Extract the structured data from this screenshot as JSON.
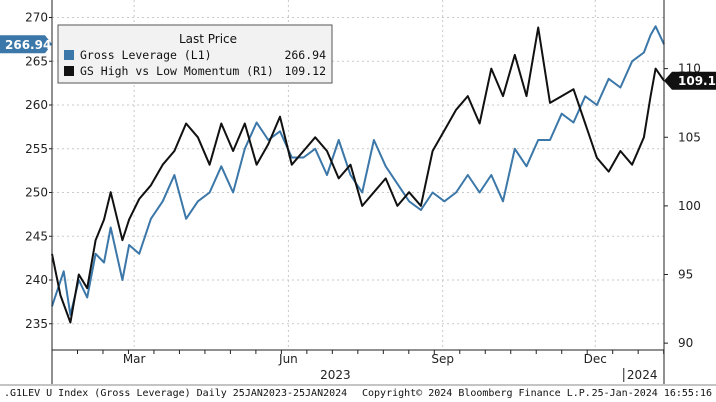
{
  "colors": {
    "series_l1": "#3b77a8",
    "series_r1": "#111111",
    "grid": "#c9c9c9",
    "axis": "#222222"
  },
  "chart_data": {
    "type": "line",
    "grid": true,
    "legend": {
      "title": "Last Price",
      "placement": "top-left",
      "items": [
        {
          "label": "Gross Leverage  (L1)",
          "value": "266.94",
          "swatch": "#3b77a8"
        },
        {
          "label": "GS High vs Low Momentum  (R1)",
          "value": "109.12",
          "swatch": "#111111"
        }
      ]
    },
    "left_axis": {
      "ylim": [
        232,
        272
      ],
      "ticks": [
        "235",
        "240",
        "245",
        "250",
        "255",
        "260",
        "265",
        "270"
      ],
      "last_tag": "266.94"
    },
    "right_axis": {
      "ylim": [
        89.5,
        115
      ],
      "ticks": [
        "90",
        "95",
        "100",
        "105",
        "110"
      ],
      "last_tag": "109.12"
    },
    "x_axis": {
      "range": [
        "2023-01-25",
        "2024-01-25"
      ],
      "month_labels": [
        {
          "label": "Mar",
          "date": "2023-03-15"
        },
        {
          "label": "Jun",
          "date": "2023-06-15"
        },
        {
          "label": "Sep",
          "date": "2023-09-15"
        },
        {
          "label": "Dec",
          "date": "2023-12-15"
        }
      ],
      "year_labels": [
        {
          "label": "2023",
          "date": "2023-07-13"
        },
        {
          "label": "2024",
          "date": "2024-01-12"
        }
      ]
    },
    "series": [
      {
        "name": "Gross Leverage  (L1)",
        "axis": "left",
        "x": [
          "2023-01-25",
          "2023-02-01",
          "2023-02-05",
          "2023-02-10",
          "2023-02-15",
          "2023-02-20",
          "2023-02-25",
          "2023-03-01",
          "2023-03-08",
          "2023-03-12",
          "2023-03-18",
          "2023-03-25",
          "2023-04-01",
          "2023-04-08",
          "2023-04-15",
          "2023-04-22",
          "2023-04-29",
          "2023-05-06",
          "2023-05-13",
          "2023-05-20",
          "2023-05-27",
          "2023-06-03",
          "2023-06-10",
          "2023-06-17",
          "2023-06-24",
          "2023-07-01",
          "2023-07-08",
          "2023-07-15",
          "2023-07-22",
          "2023-07-29",
          "2023-08-05",
          "2023-08-12",
          "2023-08-19",
          "2023-08-26",
          "2023-09-02",
          "2023-09-09",
          "2023-09-16",
          "2023-09-23",
          "2023-09-30",
          "2023-10-07",
          "2023-10-14",
          "2023-10-21",
          "2023-10-28",
          "2023-11-04",
          "2023-11-11",
          "2023-11-18",
          "2023-11-25",
          "2023-12-02",
          "2023-12-09",
          "2023-12-16",
          "2023-12-23",
          "2023-12-30",
          "2024-01-06",
          "2024-01-13",
          "2024-01-17",
          "2024-01-20",
          "2024-01-25"
        ],
        "y": [
          237,
          241,
          236,
          240,
          238,
          243,
          242,
          246,
          240,
          244,
          243,
          247,
          249,
          252,
          247,
          249,
          250,
          253,
          250,
          255,
          258,
          256,
          257,
          254,
          254,
          255,
          252,
          256,
          252,
          250,
          256,
          253,
          251,
          249,
          248,
          250,
          249,
          250,
          252,
          250,
          252,
          249,
          255,
          253,
          256,
          256,
          259,
          258,
          261,
          260,
          263,
          262,
          265,
          266,
          268,
          269,
          266.94
        ]
      },
      {
        "name": "GS High vs Low Momentum  (R1)",
        "axis": "right",
        "x": [
          "2023-01-25",
          "2023-01-30",
          "2023-02-05",
          "2023-02-10",
          "2023-02-15",
          "2023-02-20",
          "2023-02-25",
          "2023-03-01",
          "2023-03-08",
          "2023-03-12",
          "2023-03-18",
          "2023-03-25",
          "2023-04-01",
          "2023-04-08",
          "2023-04-15",
          "2023-04-22",
          "2023-04-29",
          "2023-05-06",
          "2023-05-13",
          "2023-05-20",
          "2023-05-27",
          "2023-06-03",
          "2023-06-10",
          "2023-06-17",
          "2023-06-24",
          "2023-07-01",
          "2023-07-08",
          "2023-07-15",
          "2023-07-22",
          "2023-07-29",
          "2023-08-05",
          "2023-08-12",
          "2023-08-19",
          "2023-08-26",
          "2023-09-02",
          "2023-09-09",
          "2023-09-16",
          "2023-09-23",
          "2023-09-30",
          "2023-10-07",
          "2023-10-14",
          "2023-10-21",
          "2023-10-28",
          "2023-11-04",
          "2023-11-11",
          "2023-11-18",
          "2023-11-25",
          "2023-12-02",
          "2023-12-09",
          "2023-12-16",
          "2023-12-23",
          "2023-12-30",
          "2024-01-06",
          "2024-01-13",
          "2024-01-17",
          "2024-01-20",
          "2024-01-25"
        ],
        "y": [
          96.5,
          93.5,
          91.5,
          95,
          94,
          97.5,
          99,
          101,
          97.5,
          99,
          100.5,
          101.5,
          103,
          104,
          106,
          105,
          103,
          106,
          104,
          106,
          103,
          104.5,
          106.5,
          103,
          104,
          105,
          104,
          102,
          103,
          100,
          101,
          102,
          100,
          101,
          100,
          104,
          105.5,
          107,
          108,
          106,
          110,
          108,
          111,
          108,
          113,
          107.5,
          108,
          108.5,
          106,
          103.5,
          102.5,
          104,
          103,
          105,
          108,
          110,
          109.12
        ]
      }
    ],
    "footer": {
      "left": ".G1LEV U Index (Gross Leverage)  Daily 25JAN2023-25JAN2024",
      "center": "Copyright© 2024 Bloomberg Finance L.P.",
      "right": "25-Jan-2024 16:55:16"
    }
  }
}
